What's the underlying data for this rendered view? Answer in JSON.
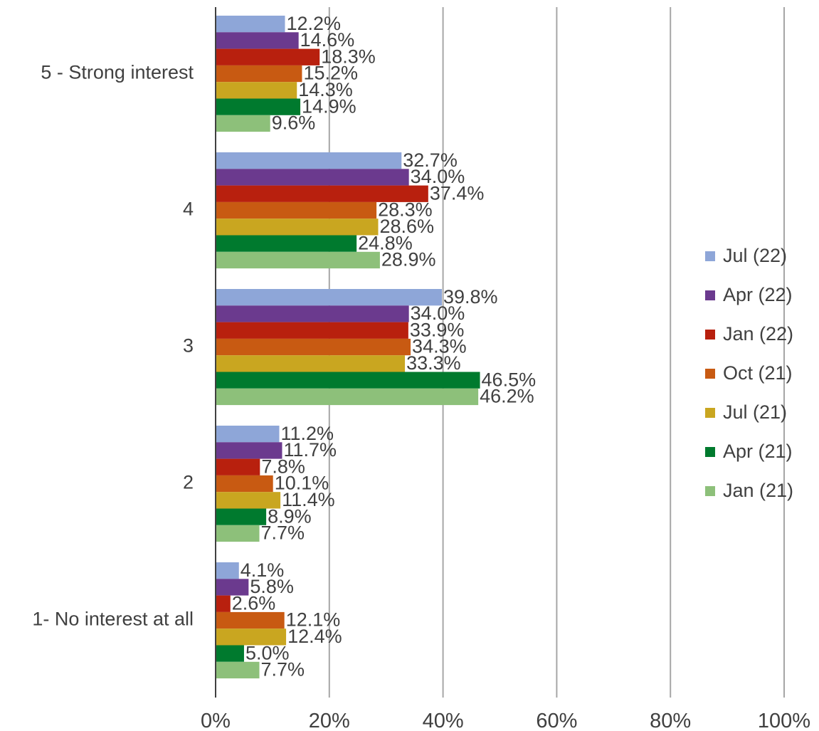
{
  "chart_data": {
    "type": "bar",
    "orientation": "horizontal",
    "categories": [
      "5 - Strong interest",
      "4",
      "3",
      "2",
      "1- No interest at all"
    ],
    "series": [
      {
        "name": "Jul (22)",
        "color": "#8EA6D8",
        "values": [
          12.2,
          32.7,
          39.8,
          11.2,
          4.1
        ],
        "labels": [
          "12.2%",
          "32.7%",
          "39.8%",
          "11.2%",
          "4.1%"
        ]
      },
      {
        "name": "Apr (22)",
        "color": "#6B3A8E",
        "values": [
          14.6,
          34.0,
          34.0,
          11.7,
          5.8
        ],
        "labels": [
          "14.6%",
          "34.0%",
          "34.0%",
          "11.7%",
          "5.8%"
        ]
      },
      {
        "name": "Jan (22)",
        "color": "#B8200E",
        "values": [
          18.3,
          37.4,
          33.9,
          7.8,
          2.6
        ],
        "labels": [
          "18.3%",
          "37.4%",
          "33.9%",
          "7.8%",
          "2.6%"
        ]
      },
      {
        "name": "Oct (21)",
        "color": "#C85A12",
        "values": [
          15.2,
          28.3,
          34.3,
          10.1,
          12.1
        ],
        "labels": [
          "15.2%",
          "28.3%",
          "34.3%",
          "10.1%",
          "12.1%"
        ]
      },
      {
        "name": "Jul (21)",
        "color": "#C9A620",
        "values": [
          14.3,
          28.6,
          33.3,
          11.4,
          12.4
        ],
        "labels": [
          "14.3%",
          "28.6%",
          "33.3%",
          "11.4%",
          "12.4%"
        ]
      },
      {
        "name": "Apr (21)",
        "color": "#007A2E",
        "values": [
          14.9,
          24.8,
          46.5,
          8.9,
          5.0
        ],
        "labels": [
          "14.9%",
          "24.8%",
          "46.5%",
          "8.9%",
          "5.0%"
        ]
      },
      {
        "name": "Jan (21)",
        "color": "#8DC07A",
        "values": [
          9.6,
          28.9,
          46.2,
          7.7,
          7.7
        ],
        "labels": [
          "9.6%",
          "28.9%",
          "46.2%",
          "7.7%",
          "7.7%"
        ]
      }
    ],
    "xlim": [
      0,
      100
    ],
    "xticks": [
      "0%",
      "20%",
      "40%",
      "60%",
      "80%",
      "100%"
    ],
    "grid": true,
    "legend_position": "right",
    "title": "",
    "xlabel": "",
    "ylabel": ""
  }
}
